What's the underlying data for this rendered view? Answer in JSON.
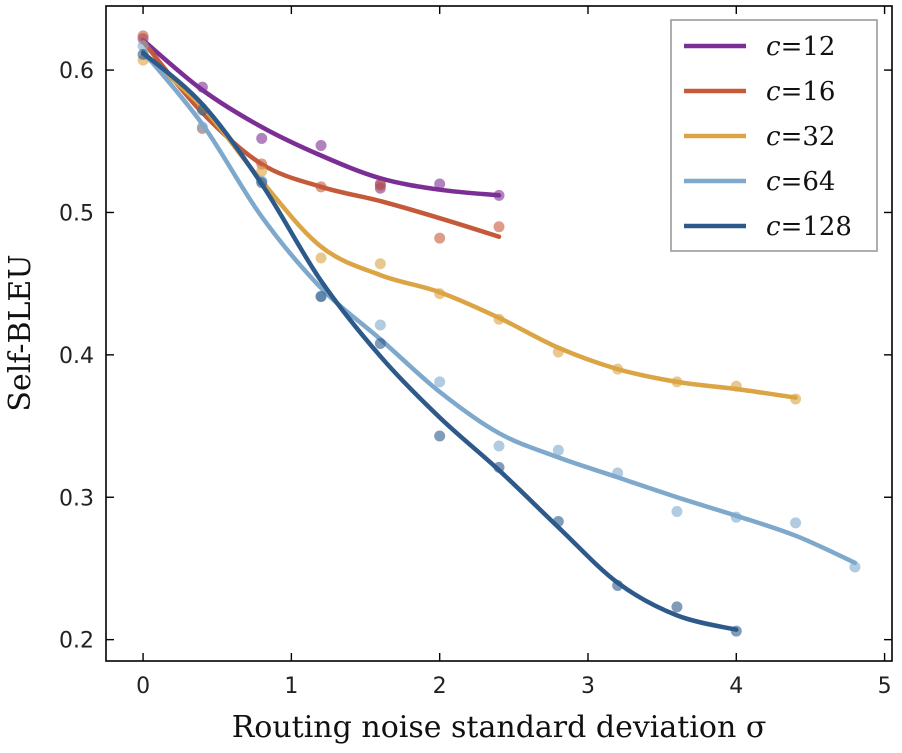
{
  "chart_data": {
    "type": "line",
    "title": "",
    "xlabel": "Routing noise standard deviation σ",
    "ylabel": "Self-BLEU",
    "xlim": [
      -0.25,
      5.05
    ],
    "ylim": [
      0.185,
      0.645
    ],
    "x_ticks": [
      0,
      1,
      2,
      3,
      4,
      5
    ],
    "y_ticks": [
      0.2,
      0.3,
      0.4,
      0.5,
      0.6
    ],
    "grid": false,
    "legend_position": "top-right",
    "series": [
      {
        "name": "c=12",
        "label_var": "c",
        "label_val": "=12",
        "color": "#7b2e93",
        "points": [
          [
            0,
            0.622
          ],
          [
            0.4,
            0.588
          ],
          [
            0.8,
            0.552
          ],
          [
            1.2,
            0.547
          ],
          [
            1.6,
            0.517
          ],
          [
            1.6,
            0.52
          ],
          [
            2.0,
            0.52
          ],
          [
            2.4,
            0.512
          ]
        ],
        "curve": [
          [
            0,
            0.621
          ],
          [
            0.4,
            0.586
          ],
          [
            0.8,
            0.56
          ],
          [
            1.2,
            0.54
          ],
          [
            1.6,
            0.524
          ],
          [
            2.0,
            0.516
          ],
          [
            2.4,
            0.512
          ]
        ]
      },
      {
        "name": "c=16",
        "label_var": "c",
        "label_val": "=16",
        "color": "#c55a3a",
        "points": [
          [
            0,
            0.624
          ],
          [
            0.4,
            0.559
          ],
          [
            0.8,
            0.534
          ],
          [
            1.2,
            0.518
          ],
          [
            1.6,
            0.519
          ],
          [
            2.0,
            0.482
          ],
          [
            2.4,
            0.49
          ]
        ],
        "curve": [
          [
            0,
            0.62
          ],
          [
            0.4,
            0.57
          ],
          [
            0.8,
            0.534
          ],
          [
            1.2,
            0.518
          ],
          [
            1.6,
            0.508
          ],
          [
            2.0,
            0.496
          ],
          [
            2.4,
            0.483
          ]
        ]
      },
      {
        "name": "c=32",
        "label_var": "c",
        "label_val": "=32",
        "color": "#dba444",
        "points": [
          [
            0,
            0.607
          ],
          [
            0.4,
            0.573
          ],
          [
            0.8,
            0.529
          ],
          [
            1.2,
            0.468
          ],
          [
            1.6,
            0.464
          ],
          [
            2.0,
            0.443
          ],
          [
            2.4,
            0.425
          ],
          [
            2.8,
            0.402
          ],
          [
            3.2,
            0.39
          ],
          [
            3.6,
            0.381
          ],
          [
            4.0,
            0.378
          ],
          [
            4.4,
            0.369
          ]
        ],
        "curve": [
          [
            0,
            0.611
          ],
          [
            0.4,
            0.574
          ],
          [
            0.8,
            0.522
          ],
          [
            1.2,
            0.476
          ],
          [
            1.6,
            0.456
          ],
          [
            2.0,
            0.444
          ],
          [
            2.4,
            0.426
          ],
          [
            2.8,
            0.405
          ],
          [
            3.2,
            0.39
          ],
          [
            3.6,
            0.381
          ],
          [
            4.0,
            0.376
          ],
          [
            4.4,
            0.37
          ]
        ]
      },
      {
        "name": "c=64",
        "label_var": "c",
        "label_val": "=64",
        "color": "#7ea9cc",
        "points": [
          [
            0,
            0.617
          ],
          [
            0.4,
            0.56
          ],
          [
            0.8,
            0.522
          ],
          [
            1.2,
            0.441
          ],
          [
            1.6,
            0.421
          ],
          [
            2.0,
            0.381
          ],
          [
            2.4,
            0.336
          ],
          [
            2.8,
            0.333
          ],
          [
            3.2,
            0.317
          ],
          [
            3.6,
            0.29
          ],
          [
            4.0,
            0.286
          ],
          [
            4.4,
            0.282
          ],
          [
            4.8,
            0.251
          ]
        ],
        "curve": [
          [
            0,
            0.613
          ],
          [
            0.4,
            0.562
          ],
          [
            0.8,
            0.497
          ],
          [
            1.2,
            0.447
          ],
          [
            1.6,
            0.411
          ],
          [
            2.0,
            0.374
          ],
          [
            2.4,
            0.345
          ],
          [
            2.8,
            0.328
          ],
          [
            3.2,
            0.314
          ],
          [
            3.6,
            0.3
          ],
          [
            4.0,
            0.287
          ],
          [
            4.4,
            0.273
          ],
          [
            4.8,
            0.254
          ]
        ]
      },
      {
        "name": "c=128",
        "label_var": "c",
        "label_val": "=128",
        "color": "#2d5a8a",
        "points": [
          [
            0,
            0.611
          ],
          [
            0.4,
            0.572
          ],
          [
            0.8,
            0.521
          ],
          [
            1.2,
            0.441
          ],
          [
            1.6,
            0.408
          ],
          [
            2.0,
            0.343
          ],
          [
            2.4,
            0.321
          ],
          [
            2.8,
            0.283
          ],
          [
            3.2,
            0.238
          ],
          [
            3.6,
            0.223
          ],
          [
            4.0,
            0.206
          ]
        ],
        "curve": [
          [
            0,
            0.612
          ],
          [
            0.4,
            0.576
          ],
          [
            0.8,
            0.52
          ],
          [
            1.2,
            0.452
          ],
          [
            1.6,
            0.399
          ],
          [
            2.0,
            0.356
          ],
          [
            2.4,
            0.319
          ],
          [
            2.8,
            0.279
          ],
          [
            3.2,
            0.24
          ],
          [
            3.6,
            0.217
          ],
          [
            4.0,
            0.207
          ]
        ]
      }
    ]
  }
}
